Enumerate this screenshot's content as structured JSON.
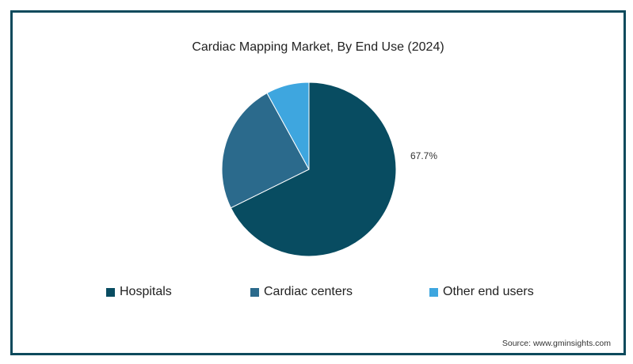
{
  "chart_data": {
    "type": "pie",
    "title": "Cardiac Mapping Market, By End Use (2024)",
    "slices": [
      {
        "name": "Hospitals",
        "value": 67.7,
        "label": "67.7%",
        "color": "#084c61"
      },
      {
        "name": "Cardiac centers",
        "value": 24.3,
        "label": "",
        "color": "#2b6a8c"
      },
      {
        "name": "Other end users",
        "value": 8.0,
        "label": "",
        "color": "#3ea6df"
      }
    ],
    "legend_placement": "bottom"
  },
  "source": "Source: www.gminsights.com"
}
